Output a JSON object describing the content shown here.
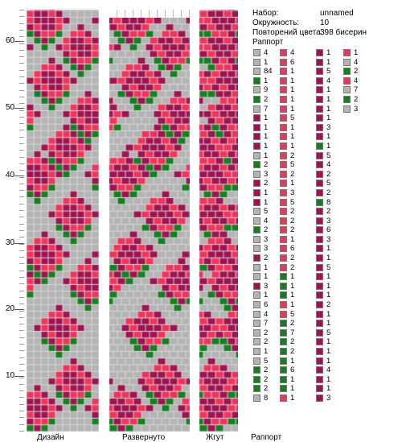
{
  "colors": {
    "grey": "#b4b4b4",
    "red": "#f5325a",
    "dark": "#a01250",
    "green": "#12821e"
  },
  "ruler": {
    "labels": [
      "60",
      "50",
      "40",
      "30",
      "20",
      "10"
    ]
  },
  "panels": {
    "design": "Дизайн",
    "unrolled": "Развернуто",
    "rope": "Жгут"
  },
  "info": {
    "set_label": "Набор:",
    "set_value": "unnamed",
    "circ_label": "Окружность:",
    "circ_value": "10",
    "repeat_label": "Повторений цвета:",
    "repeat_value": "398 бисерин",
    "rapport_title": "Раппорт",
    "rapport_bottom": "Раппорт"
  },
  "rapport": [
    [
      [
        "grey",
        "4"
      ],
      [
        "grey",
        "1"
      ],
      [
        "grey",
        "84"
      ],
      [
        "green",
        "1"
      ],
      [
        "grey",
        "9"
      ],
      [
        "green",
        "2"
      ],
      [
        "grey",
        "7"
      ],
      [
        "dark",
        "1"
      ],
      [
        "dark",
        "1"
      ],
      [
        "dark",
        "1"
      ],
      [
        "dark",
        "1"
      ],
      [
        "grey",
        "1"
      ],
      [
        "green",
        "2"
      ],
      [
        "grey",
        "3"
      ],
      [
        "dark",
        "2"
      ],
      [
        "dark",
        "1"
      ],
      [
        "dark",
        "1"
      ],
      [
        "grey",
        "5"
      ],
      [
        "grey",
        "4"
      ],
      [
        "green",
        "2"
      ],
      [
        "grey",
        "3"
      ],
      [
        "grey",
        "3"
      ],
      [
        "dark",
        "2"
      ],
      [
        "grey",
        "1"
      ],
      [
        "grey",
        "1"
      ],
      [
        "dark",
        "3"
      ],
      [
        "grey",
        "1"
      ],
      [
        "grey",
        "6"
      ],
      [
        "grey",
        "4"
      ],
      [
        "grey",
        "7"
      ],
      [
        "grey",
        "2"
      ],
      [
        "grey",
        "2"
      ],
      [
        "grey",
        "1"
      ],
      [
        "grey",
        "5"
      ],
      [
        "green",
        "2"
      ],
      [
        "green",
        "2"
      ],
      [
        "green",
        "2"
      ],
      [
        "grey",
        "8"
      ]
    ],
    [
      [
        "red",
        "4"
      ],
      [
        "red",
        "6"
      ],
      [
        "red",
        "1"
      ],
      [
        "red",
        "1"
      ],
      [
        "red",
        "1"
      ],
      [
        "red",
        "1"
      ],
      [
        "red",
        "1"
      ],
      [
        "red",
        "5"
      ],
      [
        "red",
        "1"
      ],
      [
        "red",
        "1"
      ],
      [
        "red",
        "1"
      ],
      [
        "red",
        "2"
      ],
      [
        "red",
        "5"
      ],
      [
        "red",
        "2"
      ],
      [
        "red",
        "1"
      ],
      [
        "red",
        "3"
      ],
      [
        "red",
        "5"
      ],
      [
        "red",
        "2"
      ],
      [
        "red",
        "2"
      ],
      [
        "red",
        "2"
      ],
      [
        "red",
        "1"
      ],
      [
        "red",
        "6"
      ],
      [
        "red",
        "2"
      ],
      [
        "red",
        "2"
      ],
      [
        "green",
        "1"
      ],
      [
        "green",
        "1"
      ],
      [
        "green",
        "1"
      ],
      [
        "red",
        "1"
      ],
      [
        "red",
        "5"
      ],
      [
        "green",
        "2"
      ],
      [
        "green",
        "7"
      ],
      [
        "green",
        "2"
      ],
      [
        "green",
        "2"
      ],
      [
        "green",
        "1"
      ],
      [
        "green",
        "6"
      ],
      [
        "green",
        "1"
      ],
      [
        "green",
        "1"
      ],
      [
        "red",
        "1"
      ]
    ],
    [
      [
        "dark",
        "1"
      ],
      [
        "dark",
        "1"
      ],
      [
        "dark",
        "5"
      ],
      [
        "dark",
        "4"
      ],
      [
        "dark",
        "1"
      ],
      [
        "dark",
        "1"
      ],
      [
        "dark",
        "1"
      ],
      [
        "dark",
        "1"
      ],
      [
        "dark",
        "3"
      ],
      [
        "dark",
        "1"
      ],
      [
        "green",
        "1"
      ],
      [
        "dark",
        "5"
      ],
      [
        "dark",
        "4"
      ],
      [
        "dark",
        "2"
      ],
      [
        "dark",
        "5"
      ],
      [
        "dark",
        "2"
      ],
      [
        "green",
        "8"
      ],
      [
        "dark",
        "2"
      ],
      [
        "dark",
        "3"
      ],
      [
        "dark",
        "6"
      ],
      [
        "dark",
        "3"
      ],
      [
        "dark",
        "1"
      ],
      [
        "dark",
        "1"
      ],
      [
        "dark",
        "5"
      ],
      [
        "dark",
        "1"
      ],
      [
        "dark",
        "1"
      ],
      [
        "dark",
        "1"
      ],
      [
        "dark",
        "2"
      ],
      [
        "dark",
        "1"
      ],
      [
        "dark",
        "1"
      ],
      [
        "dark",
        "5"
      ],
      [
        "dark",
        "1"
      ],
      [
        "dark",
        "1"
      ],
      [
        "dark",
        "1"
      ],
      [
        "dark",
        "4"
      ],
      [
        "dark",
        "1"
      ],
      [
        "dark",
        "1"
      ],
      [
        "dark",
        "3"
      ]
    ],
    [
      [
        "red",
        "1"
      ],
      [
        "grey",
        "4"
      ],
      [
        "green",
        "2"
      ],
      [
        "red",
        "4"
      ],
      [
        "grey",
        "7"
      ],
      [
        "green",
        "2"
      ],
      [
        "grey",
        "3"
      ]
    ]
  ]
}
